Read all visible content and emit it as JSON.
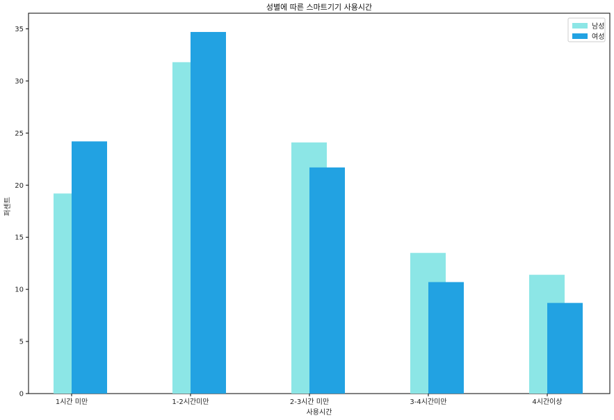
{
  "chart_data": {
    "type": "bar",
    "title": "성별에 따른 스마트기기 사용시간",
    "xlabel": "사용시간",
    "ylabel": "퍼센트",
    "categories": [
      "1시간 미만",
      "1-2시간미만",
      "2-3시간 미만",
      "3-4시간미만",
      "4시간이상"
    ],
    "series": [
      {
        "name": "남성",
        "values": [
          19.2,
          31.8,
          24.1,
          13.5,
          11.4
        ],
        "color": "#8ce6e6"
      },
      {
        "name": "여성",
        "values": [
          24.2,
          34.7,
          21.7,
          10.7,
          8.7
        ],
        "color": "#22a2e2"
      }
    ],
    "ylim": [
      0,
      36.5
    ],
    "yticks": [
      0,
      5,
      10,
      15,
      20,
      25,
      30,
      35
    ],
    "grid": false,
    "legend_position": "top-right"
  }
}
